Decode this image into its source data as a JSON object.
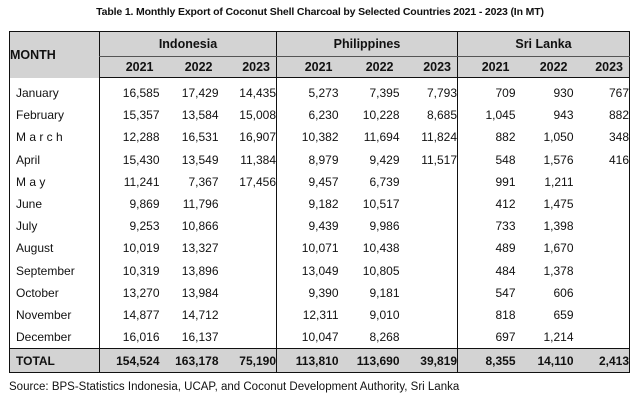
{
  "title": "Table 1. Monthly Export of Coconut Shell Charcoal by Selected Countries 2021 - 2023 (In MT)",
  "month_header": "MONTH",
  "countries": [
    "Indonesia",
    "Philippines",
    "Sri Lanka"
  ],
  "years": [
    "2021",
    "2022",
    "2023"
  ],
  "rows": [
    {
      "month": "January",
      "values": [
        "16,585",
        "17,429",
        "14,435",
        "5,273",
        "7,395",
        "7,793",
        "709",
        "930",
        "767"
      ]
    },
    {
      "month": "February",
      "values": [
        "15,357",
        "13,584",
        "15,008",
        "6,230",
        "10,228",
        "8,685",
        "1,045",
        "943",
        "882"
      ]
    },
    {
      "month": "M a r c h",
      "values": [
        "12,288",
        "16,531",
        "16,907",
        "10,382",
        "11,694",
        "11,824",
        "882",
        "1,050",
        "348"
      ]
    },
    {
      "month": "April",
      "values": [
        "15,430",
        "13,549",
        "11,384",
        "8,979",
        "9,429",
        "11,517",
        "548",
        "1,576",
        "416"
      ]
    },
    {
      "month": "M a y",
      "values": [
        "11,241",
        "7,367",
        "17,456",
        "9,457",
        "6,739",
        "",
        "991",
        "1,211",
        ""
      ]
    },
    {
      "month": "June",
      "values": [
        "9,869",
        "11,796",
        "",
        "9,182",
        "10,517",
        "",
        "412",
        "1,475",
        ""
      ]
    },
    {
      "month": "July",
      "values": [
        "9,253",
        "10,866",
        "",
        "9,439",
        "9,986",
        "",
        "733",
        "1,398",
        ""
      ]
    },
    {
      "month": "August",
      "values": [
        "10,019",
        "13,327",
        "",
        "10,071",
        "10,438",
        "",
        "489",
        "1,670",
        ""
      ]
    },
    {
      "month": "September",
      "values": [
        "10,319",
        "13,896",
        "",
        "13,049",
        "10,805",
        "",
        "484",
        "1,378",
        ""
      ]
    },
    {
      "month": "October",
      "values": [
        "13,270",
        "13,984",
        "",
        "9,390",
        "9,181",
        "",
        "547",
        "606",
        ""
      ]
    },
    {
      "month": "November",
      "values": [
        "14,877",
        "14,712",
        "",
        "12,311",
        "9,010",
        "",
        "818",
        "659",
        ""
      ]
    },
    {
      "month": "December",
      "values": [
        "16,016",
        "16,137",
        "",
        "10,047",
        "8,268",
        "",
        "697",
        "1,214",
        ""
      ]
    }
  ],
  "total": {
    "label": "TOTAL",
    "values": [
      "154,524",
      "163,178",
      "75,190",
      "113,810",
      "113,690",
      "39,819",
      "8,355",
      "14,110",
      "2,413"
    ]
  },
  "source": "Source: BPS-Statistics Indonesia, UCAP, and Coconut Development Authority, Sri Lanka"
}
